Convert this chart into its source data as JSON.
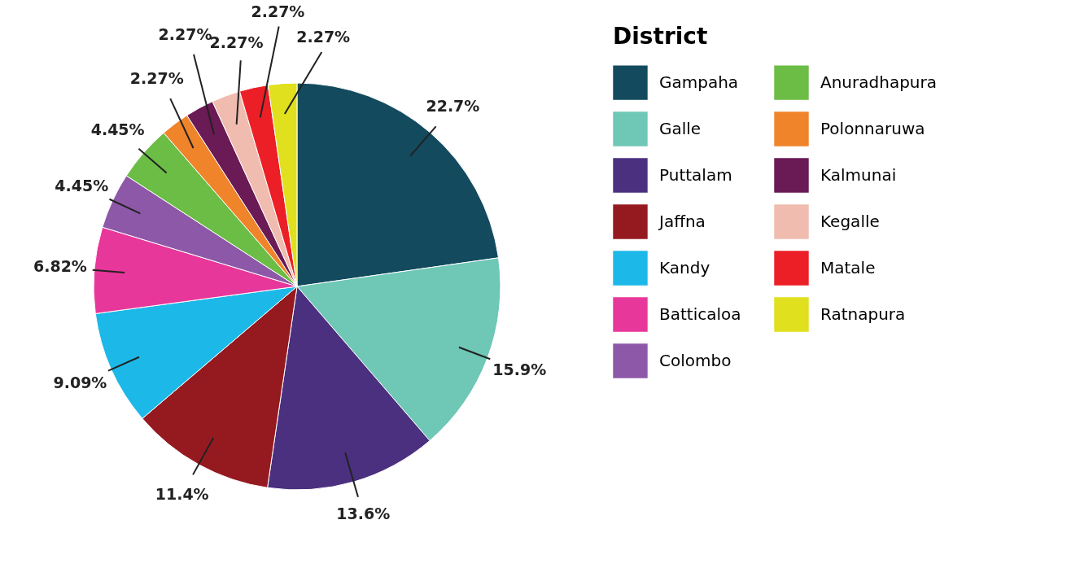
{
  "chart_data": {
    "type": "pie",
    "legend_title": "District",
    "legend": "right",
    "categories": [
      "Gampaha",
      "Galle",
      "Puttalam",
      "Jaffna",
      "Kandy",
      "Batticaloa",
      "Colombo",
      "Anuradhapura",
      "Polonnaruwa",
      "Kalmunai",
      "Kegalle",
      "Matale",
      "Ratnapura"
    ],
    "values": [
      22.7,
      15.9,
      13.6,
      11.4,
      9.09,
      6.82,
      4.45,
      4.45,
      2.27,
      2.27,
      2.27,
      2.27,
      2.27
    ],
    "value_labels": [
      "22.7%",
      "15.9%",
      "13.6%",
      "11.4%",
      "9.09%",
      "6.82%",
      "4.45%",
      "4.45%",
      "2.27%",
      "2.27%",
      "2.27%",
      "2.27%",
      "2.27%"
    ],
    "colors": [
      "#134a5e",
      "#6fc7b6",
      "#4b3080",
      "#951a20",
      "#1cb9e8",
      "#e8379a",
      "#8e58a8",
      "#6bbd45",
      "#f0842a",
      "#6a1a55",
      "#efbcaf",
      "#ec1f26",
      "#e0e01e"
    ]
  }
}
